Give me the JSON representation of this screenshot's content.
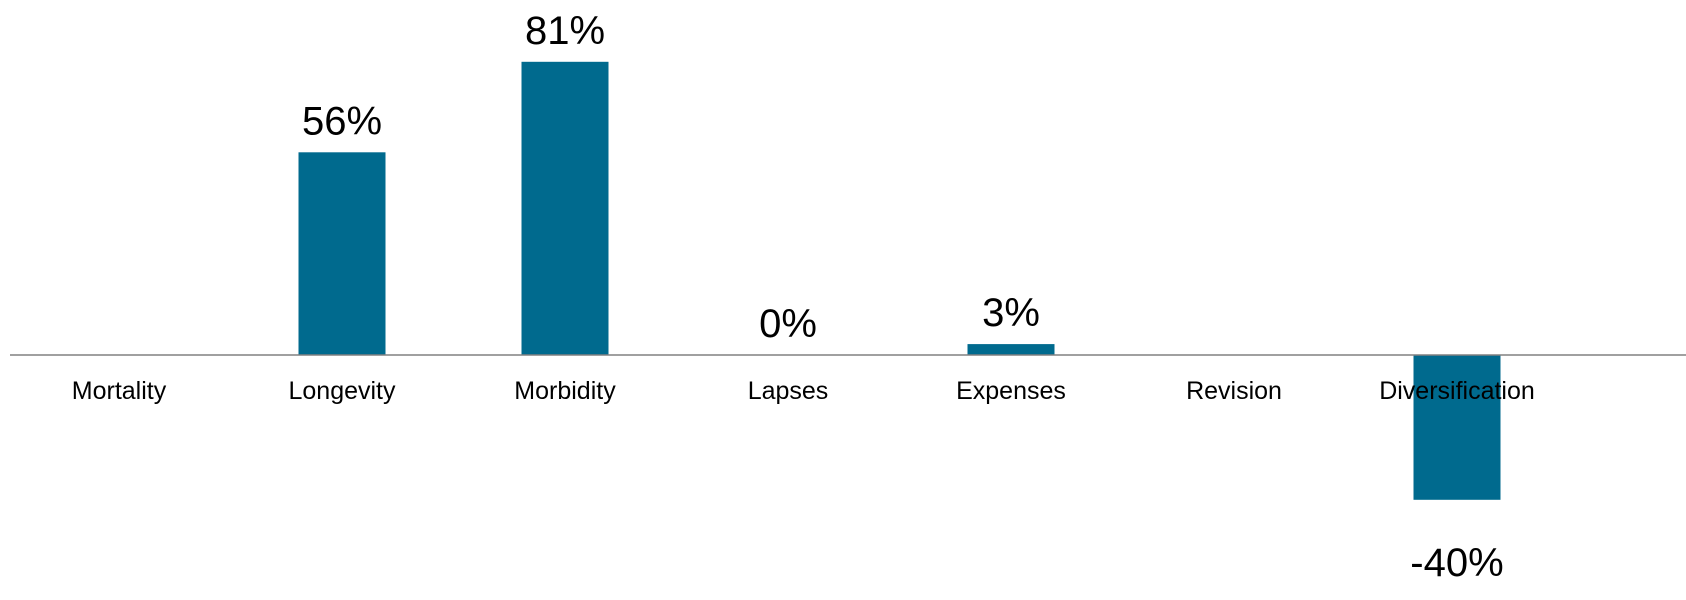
{
  "colors": {
    "bar": "#006A8E",
    "axis": "#808080",
    "text": "#000000",
    "background": "#FFFFFF"
  },
  "chart_data": {
    "type": "bar",
    "title": "",
    "xlabel": "",
    "ylabel": "",
    "categories": [
      "Mortality",
      "Longevity",
      "Morbidity",
      "Lapses",
      "Expenses",
      "Revision",
      "Diversification"
    ],
    "values": [
      null,
      56,
      81,
      0,
      3,
      null,
      -40
    ],
    "data_labels": [
      "",
      "56%",
      "81%",
      "0%",
      "3%",
      "",
      "-40%"
    ],
    "unit": "%",
    "grid": false,
    "legend": "none"
  }
}
